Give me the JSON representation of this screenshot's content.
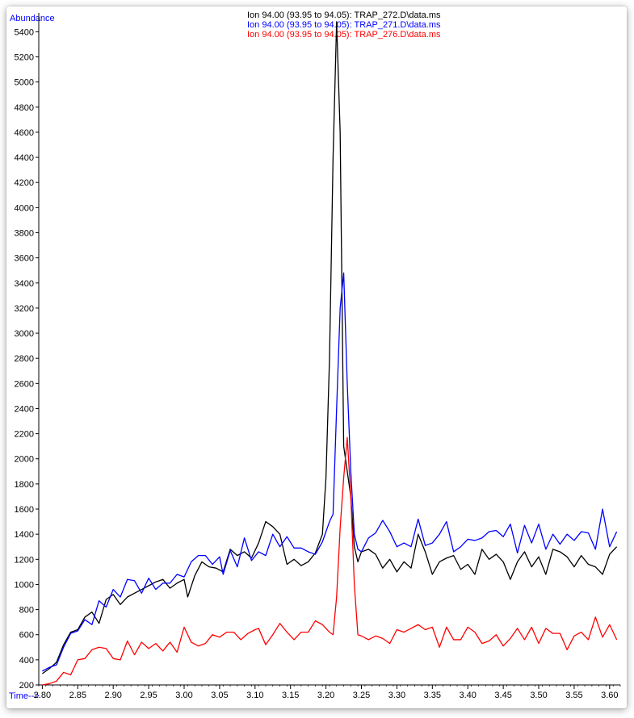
{
  "chart_data": {
    "type": "line",
    "xlabel": "Time-->",
    "ylabel": "Abundance",
    "xlim": [
      2.795,
      3.615
    ],
    "ylim": [
      200,
      5550
    ],
    "x_ticks": [
      "2.80",
      "2.85",
      "2.90",
      "2.95",
      "3.00",
      "3.05",
      "3.10",
      "3.15",
      "3.20",
      "3.25",
      "3.30",
      "3.35",
      "3.40",
      "3.45",
      "3.50",
      "3.55",
      "3.60"
    ],
    "y_ticks": [
      "200",
      "400",
      "600",
      "800",
      "1000",
      "1200",
      "1400",
      "1600",
      "1800",
      "2000",
      "2200",
      "2400",
      "2600",
      "2800",
      "3000",
      "3200",
      "3400",
      "3600",
      "3800",
      "4000",
      "4200",
      "4400",
      "4600",
      "4800",
      "5000",
      "5200",
      "5400"
    ],
    "legend": [
      {
        "text": "Ion  94.00 (93.95 to 94.05): TRAP_272.D\\data.ms",
        "color": "#000000"
      },
      {
        "text": "Ion  94.00 (93.95 to 94.05): TRAP_271.D\\data.ms",
        "color": "#0000ff"
      },
      {
        "text": "Ion  94.00 (93.95 to 94.05): TRAP_276.D\\data.ms",
        "color": "#ff0000"
      }
    ],
    "series": [
      {
        "color": "#000000",
        "points": [
          [
            2.8,
            290
          ],
          [
            2.81,
            330
          ],
          [
            2.82,
            380
          ],
          [
            2.83,
            520
          ],
          [
            2.84,
            620
          ],
          [
            2.85,
            640
          ],
          [
            2.86,
            740
          ],
          [
            2.87,
            780
          ],
          [
            2.88,
            690
          ],
          [
            2.89,
            880
          ],
          [
            2.9,
            920
          ],
          [
            2.91,
            840
          ],
          [
            2.92,
            900
          ],
          [
            2.93,
            930
          ],
          [
            2.94,
            960
          ],
          [
            2.95,
            990
          ],
          [
            2.96,
            1020
          ],
          [
            2.97,
            1040
          ],
          [
            2.98,
            970
          ],
          [
            2.99,
            1010
          ],
          [
            3.0,
            1040
          ],
          [
            3.005,
            900
          ],
          [
            3.015,
            1070
          ],
          [
            3.025,
            1180
          ],
          [
            3.035,
            1140
          ],
          [
            3.045,
            1130
          ],
          [
            3.055,
            1100
          ],
          [
            3.065,
            1280
          ],
          [
            3.075,
            1230
          ],
          [
            3.085,
            1260
          ],
          [
            3.095,
            1210
          ],
          [
            3.105,
            1330
          ],
          [
            3.115,
            1500
          ],
          [
            3.125,
            1460
          ],
          [
            3.135,
            1400
          ],
          [
            3.145,
            1160
          ],
          [
            3.155,
            1200
          ],
          [
            3.165,
            1150
          ],
          [
            3.175,
            1180
          ],
          [
            3.185,
            1250
          ],
          [
            3.195,
            1400
          ],
          [
            3.2,
            1850
          ],
          [
            3.205,
            2800
          ],
          [
            3.21,
            4400
          ],
          [
            3.215,
            5480
          ],
          [
            3.22,
            4600
          ],
          [
            3.225,
            2100
          ],
          [
            3.235,
            1700
          ],
          [
            3.24,
            1300
          ],
          [
            3.245,
            1180
          ],
          [
            3.25,
            1260
          ],
          [
            3.26,
            1280
          ],
          [
            3.27,
            1240
          ],
          [
            3.28,
            1130
          ],
          [
            3.29,
            1200
          ],
          [
            3.3,
            1100
          ],
          [
            3.31,
            1180
          ],
          [
            3.32,
            1130
          ],
          [
            3.33,
            1400
          ],
          [
            3.34,
            1260
          ],
          [
            3.35,
            1080
          ],
          [
            3.36,
            1180
          ],
          [
            3.37,
            1210
          ],
          [
            3.38,
            1230
          ],
          [
            3.39,
            1120
          ],
          [
            3.4,
            1160
          ],
          [
            3.41,
            1080
          ],
          [
            3.42,
            1280
          ],
          [
            3.43,
            1200
          ],
          [
            3.44,
            1240
          ],
          [
            3.45,
            1180
          ],
          [
            3.46,
            1040
          ],
          [
            3.47,
            1180
          ],
          [
            3.48,
            1260
          ],
          [
            3.49,
            1140
          ],
          [
            3.5,
            1220
          ],
          [
            3.51,
            1080
          ],
          [
            3.52,
            1280
          ],
          [
            3.53,
            1260
          ],
          [
            3.54,
            1220
          ],
          [
            3.55,
            1140
          ],
          [
            3.56,
            1230
          ],
          [
            3.57,
            1160
          ],
          [
            3.58,
            1140
          ],
          [
            3.59,
            1080
          ],
          [
            3.6,
            1240
          ],
          [
            3.61,
            1300
          ]
        ]
      },
      {
        "color": "#0000ff",
        "points": [
          [
            2.8,
            310
          ],
          [
            2.81,
            340
          ],
          [
            2.82,
            360
          ],
          [
            2.83,
            500
          ],
          [
            2.84,
            610
          ],
          [
            2.85,
            630
          ],
          [
            2.86,
            720
          ],
          [
            2.87,
            680
          ],
          [
            2.88,
            870
          ],
          [
            2.89,
            820
          ],
          [
            2.9,
            960
          ],
          [
            2.91,
            900
          ],
          [
            2.92,
            1040
          ],
          [
            2.93,
            1030
          ],
          [
            2.94,
            930
          ],
          [
            2.95,
            1050
          ],
          [
            2.96,
            960
          ],
          [
            2.97,
            1010
          ],
          [
            2.98,
            1010
          ],
          [
            2.99,
            1080
          ],
          [
            3.0,
            1060
          ],
          [
            3.01,
            1180
          ],
          [
            3.02,
            1230
          ],
          [
            3.03,
            1230
          ],
          [
            3.04,
            1160
          ],
          [
            3.05,
            1220
          ],
          [
            3.055,
            1080
          ],
          [
            3.065,
            1270
          ],
          [
            3.075,
            1140
          ],
          [
            3.085,
            1370
          ],
          [
            3.095,
            1190
          ],
          [
            3.105,
            1260
          ],
          [
            3.115,
            1230
          ],
          [
            3.125,
            1400
          ],
          [
            3.135,
            1300
          ],
          [
            3.145,
            1380
          ],
          [
            3.155,
            1290
          ],
          [
            3.165,
            1290
          ],
          [
            3.175,
            1260
          ],
          [
            3.185,
            1240
          ],
          [
            3.195,
            1340
          ],
          [
            3.205,
            1500
          ],
          [
            3.21,
            1560
          ],
          [
            3.215,
            2400
          ],
          [
            3.22,
            3200
          ],
          [
            3.225,
            3480
          ],
          [
            3.23,
            2600
          ],
          [
            3.235,
            1900
          ],
          [
            3.24,
            1400
          ],
          [
            3.245,
            1280
          ],
          [
            3.25,
            1260
          ],
          [
            3.26,
            1370
          ],
          [
            3.27,
            1410
          ],
          [
            3.28,
            1510
          ],
          [
            3.29,
            1420
          ],
          [
            3.3,
            1300
          ],
          [
            3.31,
            1330
          ],
          [
            3.32,
            1300
          ],
          [
            3.33,
            1520
          ],
          [
            3.34,
            1310
          ],
          [
            3.35,
            1330
          ],
          [
            3.36,
            1400
          ],
          [
            3.37,
            1500
          ],
          [
            3.38,
            1260
          ],
          [
            3.39,
            1300
          ],
          [
            3.4,
            1360
          ],
          [
            3.41,
            1350
          ],
          [
            3.42,
            1370
          ],
          [
            3.43,
            1420
          ],
          [
            3.44,
            1430
          ],
          [
            3.45,
            1380
          ],
          [
            3.46,
            1480
          ],
          [
            3.47,
            1250
          ],
          [
            3.48,
            1470
          ],
          [
            3.49,
            1330
          ],
          [
            3.5,
            1480
          ],
          [
            3.51,
            1280
          ],
          [
            3.52,
            1400
          ],
          [
            3.53,
            1320
          ],
          [
            3.54,
            1400
          ],
          [
            3.55,
            1350
          ],
          [
            3.56,
            1420
          ],
          [
            3.57,
            1410
          ],
          [
            3.58,
            1280
          ],
          [
            3.59,
            1600
          ],
          [
            3.6,
            1300
          ],
          [
            3.61,
            1420
          ]
        ]
      },
      {
        "color": "#ff0000",
        "points": [
          [
            2.8,
            200
          ],
          [
            2.81,
            210
          ],
          [
            2.82,
            230
          ],
          [
            2.83,
            300
          ],
          [
            2.84,
            280
          ],
          [
            2.85,
            400
          ],
          [
            2.86,
            410
          ],
          [
            2.87,
            480
          ],
          [
            2.88,
            500
          ],
          [
            2.89,
            490
          ],
          [
            2.9,
            410
          ],
          [
            2.91,
            400
          ],
          [
            2.92,
            550
          ],
          [
            2.93,
            440
          ],
          [
            2.94,
            540
          ],
          [
            2.95,
            490
          ],
          [
            2.96,
            530
          ],
          [
            2.97,
            470
          ],
          [
            2.98,
            540
          ],
          [
            2.99,
            460
          ],
          [
            3.0,
            660
          ],
          [
            3.01,
            540
          ],
          [
            3.02,
            510
          ],
          [
            3.03,
            530
          ],
          [
            3.04,
            600
          ],
          [
            3.05,
            580
          ],
          [
            3.06,
            620
          ],
          [
            3.07,
            620
          ],
          [
            3.08,
            560
          ],
          [
            3.09,
            610
          ],
          [
            3.1,
            640
          ],
          [
            3.105,
            650
          ],
          [
            3.115,
            520
          ],
          [
            3.125,
            600
          ],
          [
            3.135,
            690
          ],
          [
            3.145,
            620
          ],
          [
            3.155,
            560
          ],
          [
            3.165,
            620
          ],
          [
            3.175,
            620
          ],
          [
            3.185,
            710
          ],
          [
            3.195,
            680
          ],
          [
            3.205,
            620
          ],
          [
            3.21,
            600
          ],
          [
            3.215,
            900
          ],
          [
            3.22,
            1450
          ],
          [
            3.225,
            1850
          ],
          [
            3.23,
            2170
          ],
          [
            3.235,
            1700
          ],
          [
            3.24,
            1000
          ],
          [
            3.245,
            600
          ],
          [
            3.25,
            590
          ],
          [
            3.26,
            560
          ],
          [
            3.27,
            590
          ],
          [
            3.28,
            570
          ],
          [
            3.29,
            530
          ],
          [
            3.3,
            640
          ],
          [
            3.31,
            620
          ],
          [
            3.32,
            650
          ],
          [
            3.33,
            680
          ],
          [
            3.34,
            640
          ],
          [
            3.35,
            660
          ],
          [
            3.36,
            500
          ],
          [
            3.37,
            660
          ],
          [
            3.38,
            560
          ],
          [
            3.39,
            560
          ],
          [
            3.4,
            660
          ],
          [
            3.41,
            620
          ],
          [
            3.42,
            530
          ],
          [
            3.43,
            550
          ],
          [
            3.44,
            600
          ],
          [
            3.45,
            510
          ],
          [
            3.46,
            570
          ],
          [
            3.47,
            650
          ],
          [
            3.48,
            560
          ],
          [
            3.49,
            660
          ],
          [
            3.5,
            530
          ],
          [
            3.51,
            650
          ],
          [
            3.52,
            610
          ],
          [
            3.53,
            610
          ],
          [
            3.54,
            480
          ],
          [
            3.55,
            590
          ],
          [
            3.56,
            620
          ],
          [
            3.57,
            560
          ],
          [
            3.58,
            740
          ],
          [
            3.59,
            580
          ],
          [
            3.6,
            680
          ],
          [
            3.61,
            560
          ]
        ]
      }
    ]
  }
}
